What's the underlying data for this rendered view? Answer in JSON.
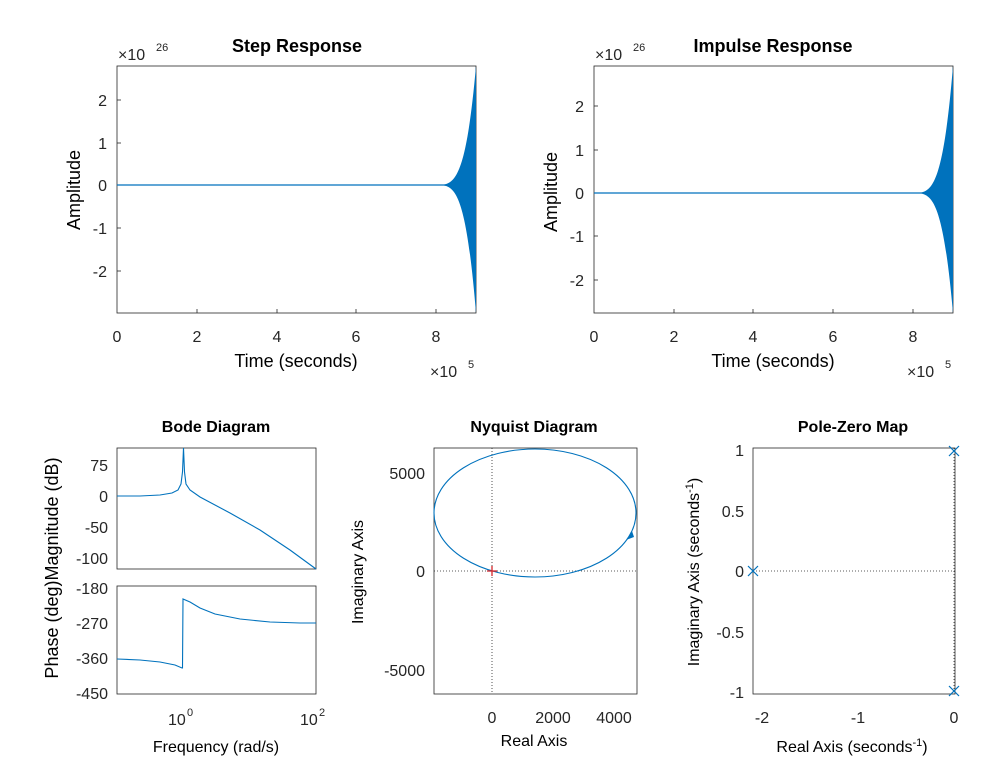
{
  "chart_data": [
    {
      "type": "line",
      "title": "Step Response",
      "xlabel": "Time (seconds)",
      "ylabel": "Amplitude",
      "x_multiplier": "×10",
      "x_exponent": "5",
      "y_multiplier": "×10",
      "y_exponent": "26",
      "xlim": [
        0,
        9
      ],
      "ylim": [
        -2.8,
        2.8
      ],
      "xticks": [
        "0",
        "2",
        "4",
        "6",
        "8"
      ],
      "yticks": [
        "-2",
        "-1",
        "0",
        "1",
        "2"
      ],
      "series": [
        {
          "x": [
            0,
            8.1,
            8.4,
            8.6,
            8.8,
            9.0
          ],
          "y_envelope": [
            0,
            0.003,
            0.06,
            0.3,
            0.9,
            2.75
          ],
          "color": "#0072bd"
        }
      ]
    },
    {
      "type": "line",
      "title": "Impulse Response",
      "xlabel": "Time (seconds)",
      "ylabel": "Amplitude",
      "x_multiplier": "×10",
      "x_exponent": "5",
      "y_multiplier": "×10",
      "y_exponent": "26",
      "xlim": [
        0,
        9
      ],
      "ylim": [
        -3,
        3
      ],
      "xticks": [
        "0",
        "2",
        "4",
        "6",
        "8"
      ],
      "yticks": [
        "-2",
        "-1",
        "0",
        "1",
        "2"
      ],
      "series": [
        {
          "x": [
            0,
            8.1,
            8.4,
            8.6,
            8.8,
            9.0
          ],
          "y_envelope": [
            0,
            0.003,
            0.06,
            0.3,
            0.9,
            2.8
          ],
          "color": "#0072bd"
        }
      ]
    },
    {
      "type": "line",
      "title": "Bode Diagram",
      "xlabel": "Frequency  (rad/s)",
      "ylabel": "Phase (deg)Magnitude (dB)",
      "x_scale": "log",
      "xlim": [
        0.1,
        100
      ],
      "xticks": [
        "10",
        "10"
      ],
      "xtick_exponents": [
        "0",
        "2"
      ],
      "magnitude": {
        "ylim": [
          -112,
          85
        ],
        "yticks": [
          "75",
          "0",
          "-50",
          "-100"
        ],
        "freq": [
          0.1,
          0.3,
          0.5,
          0.7,
          0.85,
          0.95,
          0.985,
          1.0,
          1.015,
          1.05,
          1.2,
          1.5,
          3,
          10,
          30,
          100
        ],
        "db": [
          0,
          0.5,
          2,
          5,
          10,
          20,
          33,
          80,
          33,
          20,
          5,
          -5,
          -25,
          -55,
          -83,
          -115
        ]
      },
      "phase": {
        "ylim": [
          -450,
          -170
        ],
        "yticks": [
          "-180",
          "-270",
          "-360",
          "-450"
        ],
        "freq": [
          0.1,
          0.3,
          0.6,
          0.9,
          0.99,
          1.0,
          1.01,
          1.2,
          2,
          5,
          20,
          100
        ],
        "deg": [
          -360,
          -362,
          -366,
          -372,
          -378,
          -378,
          -200,
          -210,
          -230,
          -255,
          -266,
          -269
        ]
      },
      "color": "#0072bd"
    },
    {
      "type": "line",
      "title": "Nyquist Diagram",
      "xlabel": "Real Axis",
      "ylabel": "Imaginary Axis",
      "xlim": [
        -1900,
        4700
      ],
      "ylim": [
        -7500,
        6600
      ],
      "xticks": [
        "0",
        "2000",
        "4000"
      ],
      "yticks": [
        "5000",
        "0",
        "-5000"
      ],
      "ellipse": {
        "center": [
          1380,
          2950
        ],
        "rx": 3260,
        "ry": 3260
      },
      "critical_point": [
        -1,
        0
      ],
      "color": "#0072bd"
    },
    {
      "type": "scatter",
      "title": "Pole-Zero Map",
      "xlabel": "Real Axis (seconds",
      "ylabel": "Imaginary Axis (seconds",
      "unit_exponent": "-1",
      "unit_close": ")",
      "xlim": [
        -2.2,
        0
      ],
      "ylim": [
        -1.05,
        1.05
      ],
      "xticks": [
        "-2",
        "-1",
        "0"
      ],
      "yticks": [
        "1",
        "0.5",
        "0",
        "-0.5",
        "-1"
      ],
      "poles": [
        {
          "re": -2.1,
          "im": 0
        },
        {
          "re": 0,
          "im": 0.97
        },
        {
          "re": 0,
          "im": -0.97
        }
      ],
      "color": "#0072bd"
    }
  ]
}
